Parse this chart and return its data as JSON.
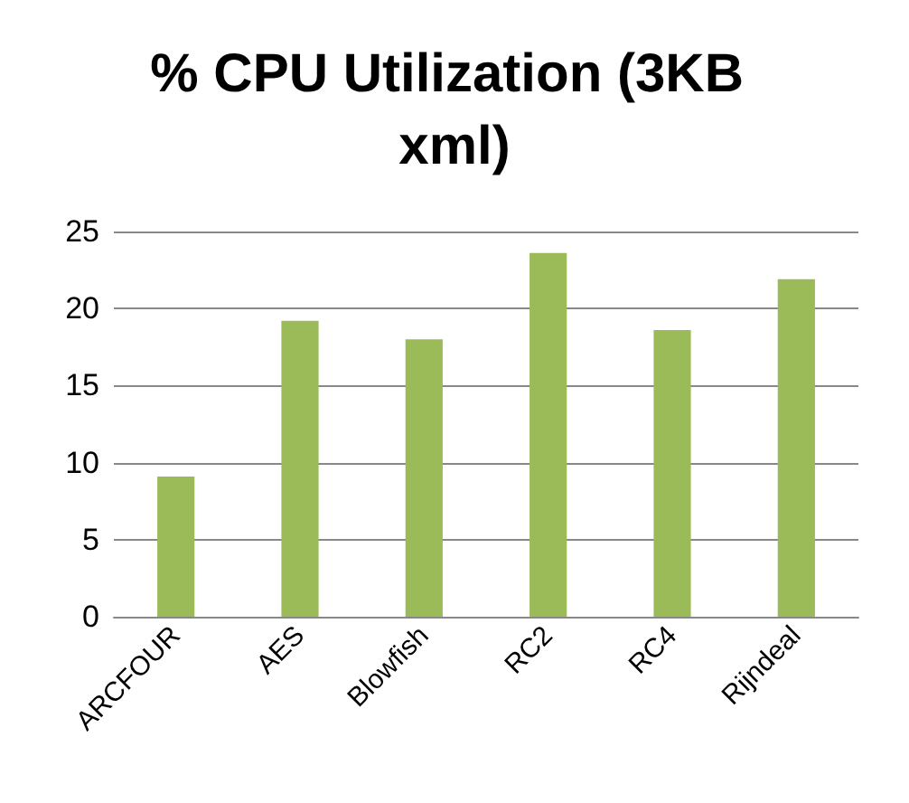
{
  "chart_data": {
    "type": "bar",
    "title": "% CPU Utilization (3KB xml)",
    "categories": [
      "ARCFOUR",
      "AES",
      "Blowfish",
      "RC2",
      "RC4",
      "Rijndeal"
    ],
    "values": [
      9.1,
      19.2,
      18.0,
      23.6,
      18.6,
      21.9
    ],
    "color": "#9bbb59",
    "ylim": [
      0,
      25
    ],
    "yticks": [
      0,
      5,
      10,
      15,
      20,
      25
    ],
    "grid": "y"
  }
}
